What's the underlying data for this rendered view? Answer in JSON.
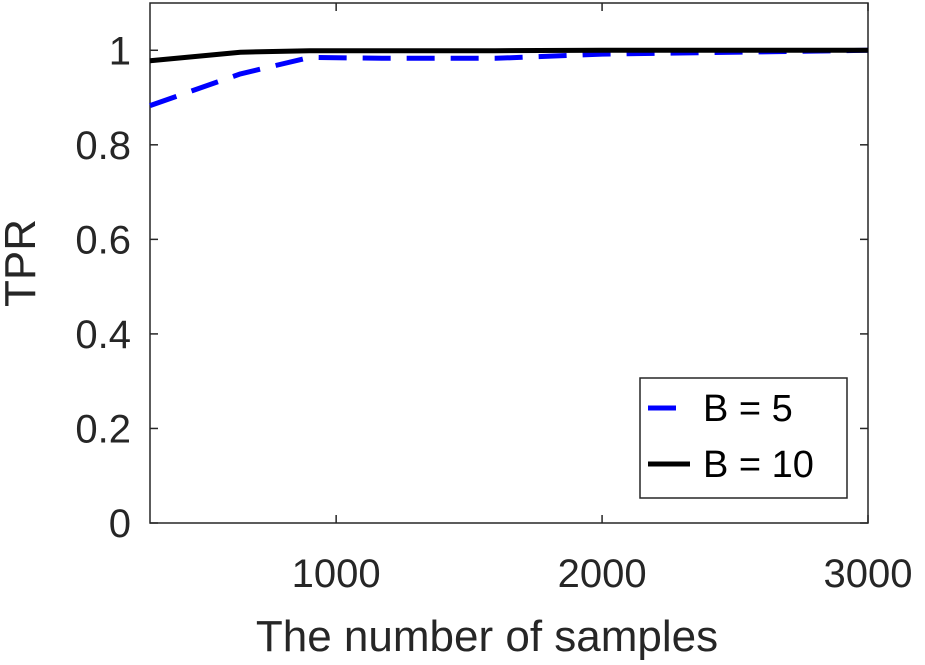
{
  "chart_data": {
    "type": "line",
    "title": "",
    "xlabel": "The number of samples",
    "ylabel": "TPR",
    "xlim": [
      300,
      3000
    ],
    "ylim": [
      0,
      1.1
    ],
    "xticks": [
      1000,
      2000,
      3000
    ],
    "yticks": [
      0,
      0.2,
      0.4,
      0.6,
      0.8,
      1
    ],
    "x_tick_labels": [
      "1000",
      "2000",
      "3000"
    ],
    "y_tick_labels": [
      "0",
      "0.2",
      "0.4",
      "0.6",
      "0.8",
      "1"
    ],
    "grid": false,
    "legend_position": "bottom-right",
    "series": [
      {
        "name": "B = 5",
        "color": "#0000ff",
        "style": "dashed",
        "x": [
          300,
          640,
          900,
          1200,
          1600,
          2000,
          2400,
          3000
        ],
        "y": [
          0.883,
          0.95,
          0.985,
          0.983,
          0.983,
          0.992,
          0.995,
          1.0
        ]
      },
      {
        "name": "B = 10",
        "color": "#000000",
        "style": "solid",
        "x": [
          300,
          640,
          900,
          1200,
          1600,
          2000,
          2400,
          3000
        ],
        "y": [
          0.978,
          0.996,
          0.999,
          0.999,
          0.999,
          1.0,
          1.0,
          1.0
        ]
      }
    ]
  }
}
